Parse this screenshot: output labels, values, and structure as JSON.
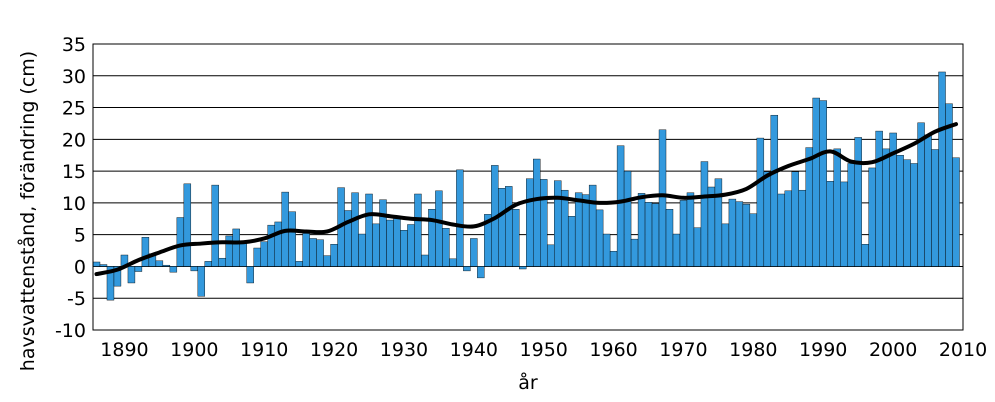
{
  "chart_data": {
    "type": "bar",
    "title": "",
    "xlabel": "år",
    "ylabel": "havsvattenstånd, förändring (cm)",
    "xlim": [
      1885.5,
      2010
    ],
    "ylim": [
      -10,
      35
    ],
    "y_ticks": [
      "-10",
      "-5",
      "0",
      "5",
      "10",
      "15",
      "20",
      "25",
      "30",
      "35"
    ],
    "x_ticks": [
      "1890",
      "1900",
      "1910",
      "1920",
      "1930",
      "1940",
      "1950",
      "1960",
      "1970",
      "1980",
      "1990",
      "2000",
      "2010"
    ],
    "grid": "horizontal",
    "bar_color": "#3399dd",
    "trend_color": "#000000",
    "series": [
      {
        "kind": "bar",
        "x": [
          1886,
          1887,
          1888,
          1889,
          1890,
          1891,
          1892,
          1893,
          1894,
          1895,
          1896,
          1897,
          1898,
          1899,
          1900,
          1901,
          1902,
          1903,
          1904,
          1905,
          1906,
          1907,
          1908,
          1909,
          1910,
          1911,
          1912,
          1913,
          1914,
          1915,
          1916,
          1917,
          1918,
          1919,
          1920,
          1921,
          1922,
          1923,
          1924,
          1925,
          1926,
          1927,
          1928,
          1929,
          1930,
          1931,
          1932,
          1933,
          1934,
          1935,
          1936,
          1937,
          1938,
          1939,
          1940,
          1941,
          1942,
          1943,
          1944,
          1945,
          1946,
          1947,
          1948,
          1949,
          1950,
          1951,
          1952,
          1953,
          1954,
          1955,
          1956,
          1957,
          1958,
          1959,
          1960,
          1961,
          1962,
          1963,
          1964,
          1965,
          1966,
          1967,
          1968,
          1969,
          1970,
          1971,
          1972,
          1973,
          1974,
          1975,
          1976,
          1977,
          1978,
          1979,
          1980,
          1981,
          1982,
          1983,
          1984,
          1985,
          1986,
          1987,
          1988,
          1989,
          1990,
          1991,
          1992,
          1993,
          1994,
          1995,
          1996,
          1997,
          1998,
          1999,
          2000,
          2001,
          2002,
          2003,
          2004,
          2005,
          2006,
          2007,
          2008,
          2009
        ],
        "values": [
          0.7,
          0.3,
          -5.3,
          -3.1,
          1.8,
          -2.6,
          -0.8,
          4.6,
          2.0,
          0.9,
          0.2,
          -0.9,
          7.7,
          13.0,
          -0.7,
          -4.7,
          0.8,
          12.8,
          1.3,
          4.8,
          5.9,
          3.6,
          -2.6,
          2.9,
          3.9,
          6.5,
          7.0,
          11.7,
          8.6,
          0.8,
          5.2,
          4.4,
          4.2,
          1.7,
          3.5,
          12.4,
          8.8,
          11.6,
          5.1,
          11.4,
          6.7,
          10.5,
          7.3,
          7.8,
          5.7,
          6.6,
          11.4,
          1.8,
          9.0,
          11.9,
          6.0,
          1.2,
          15.2,
          -0.7,
          4.4,
          -1.8,
          8.2,
          15.9,
          12.3,
          12.6,
          9.0,
          -0.4,
          13.8,
          16.9,
          13.7,
          3.4,
          13.5,
          12.0,
          7.9,
          11.6,
          11.3,
          12.8,
          8.9,
          5.1,
          2.4,
          19.0,
          15.0,
          4.3,
          11.5,
          10.1,
          9.9,
          21.5,
          9.0,
          5.1,
          10.4,
          11.6,
          6.1,
          16.5,
          12.5,
          13.8,
          6.7,
          10.6,
          10.2,
          9.8,
          8.3,
          20.2,
          14.9,
          23.8,
          11.4,
          11.9,
          14.9,
          12.0,
          18.7,
          26.5,
          26.1,
          13.4,
          18.5,
          13.3,
          16.2,
          20.3,
          3.5,
          15.5,
          21.3,
          18.5,
          21.0,
          17.5,
          16.8,
          16.2,
          22.6,
          20.7,
          18.4,
          30.6,
          25.6,
          17.1
        ]
      },
      {
        "kind": "line",
        "x": [
          1886,
          1889,
          1892,
          1895,
          1898,
          1901,
          1904,
          1907,
          1910,
          1913,
          1916,
          1919,
          1922,
          1925,
          1928,
          1931,
          1934,
          1937,
          1940,
          1943,
          1946,
          1949,
          1952,
          1955,
          1958,
          1961,
          1964,
          1967,
          1970,
          1973,
          1976,
          1979,
          1982,
          1985,
          1988,
          1991,
          1994,
          1997,
          2000,
          2003,
          2006,
          2009
        ],
        "values": [
          -1.2,
          -0.5,
          1.0,
          2.2,
          3.3,
          3.6,
          3.8,
          3.8,
          4.4,
          5.6,
          5.5,
          5.5,
          7.0,
          8.2,
          7.9,
          7.5,
          7.3,
          6.6,
          6.3,
          7.6,
          9.7,
          10.6,
          10.8,
          10.4,
          10.0,
          10.2,
          10.9,
          11.2,
          10.8,
          11.0,
          11.3,
          12.2,
          14.3,
          15.8,
          16.9,
          18.1,
          16.5,
          16.4,
          17.8,
          19.3,
          21.2,
          22.4
        ]
      }
    ]
  }
}
